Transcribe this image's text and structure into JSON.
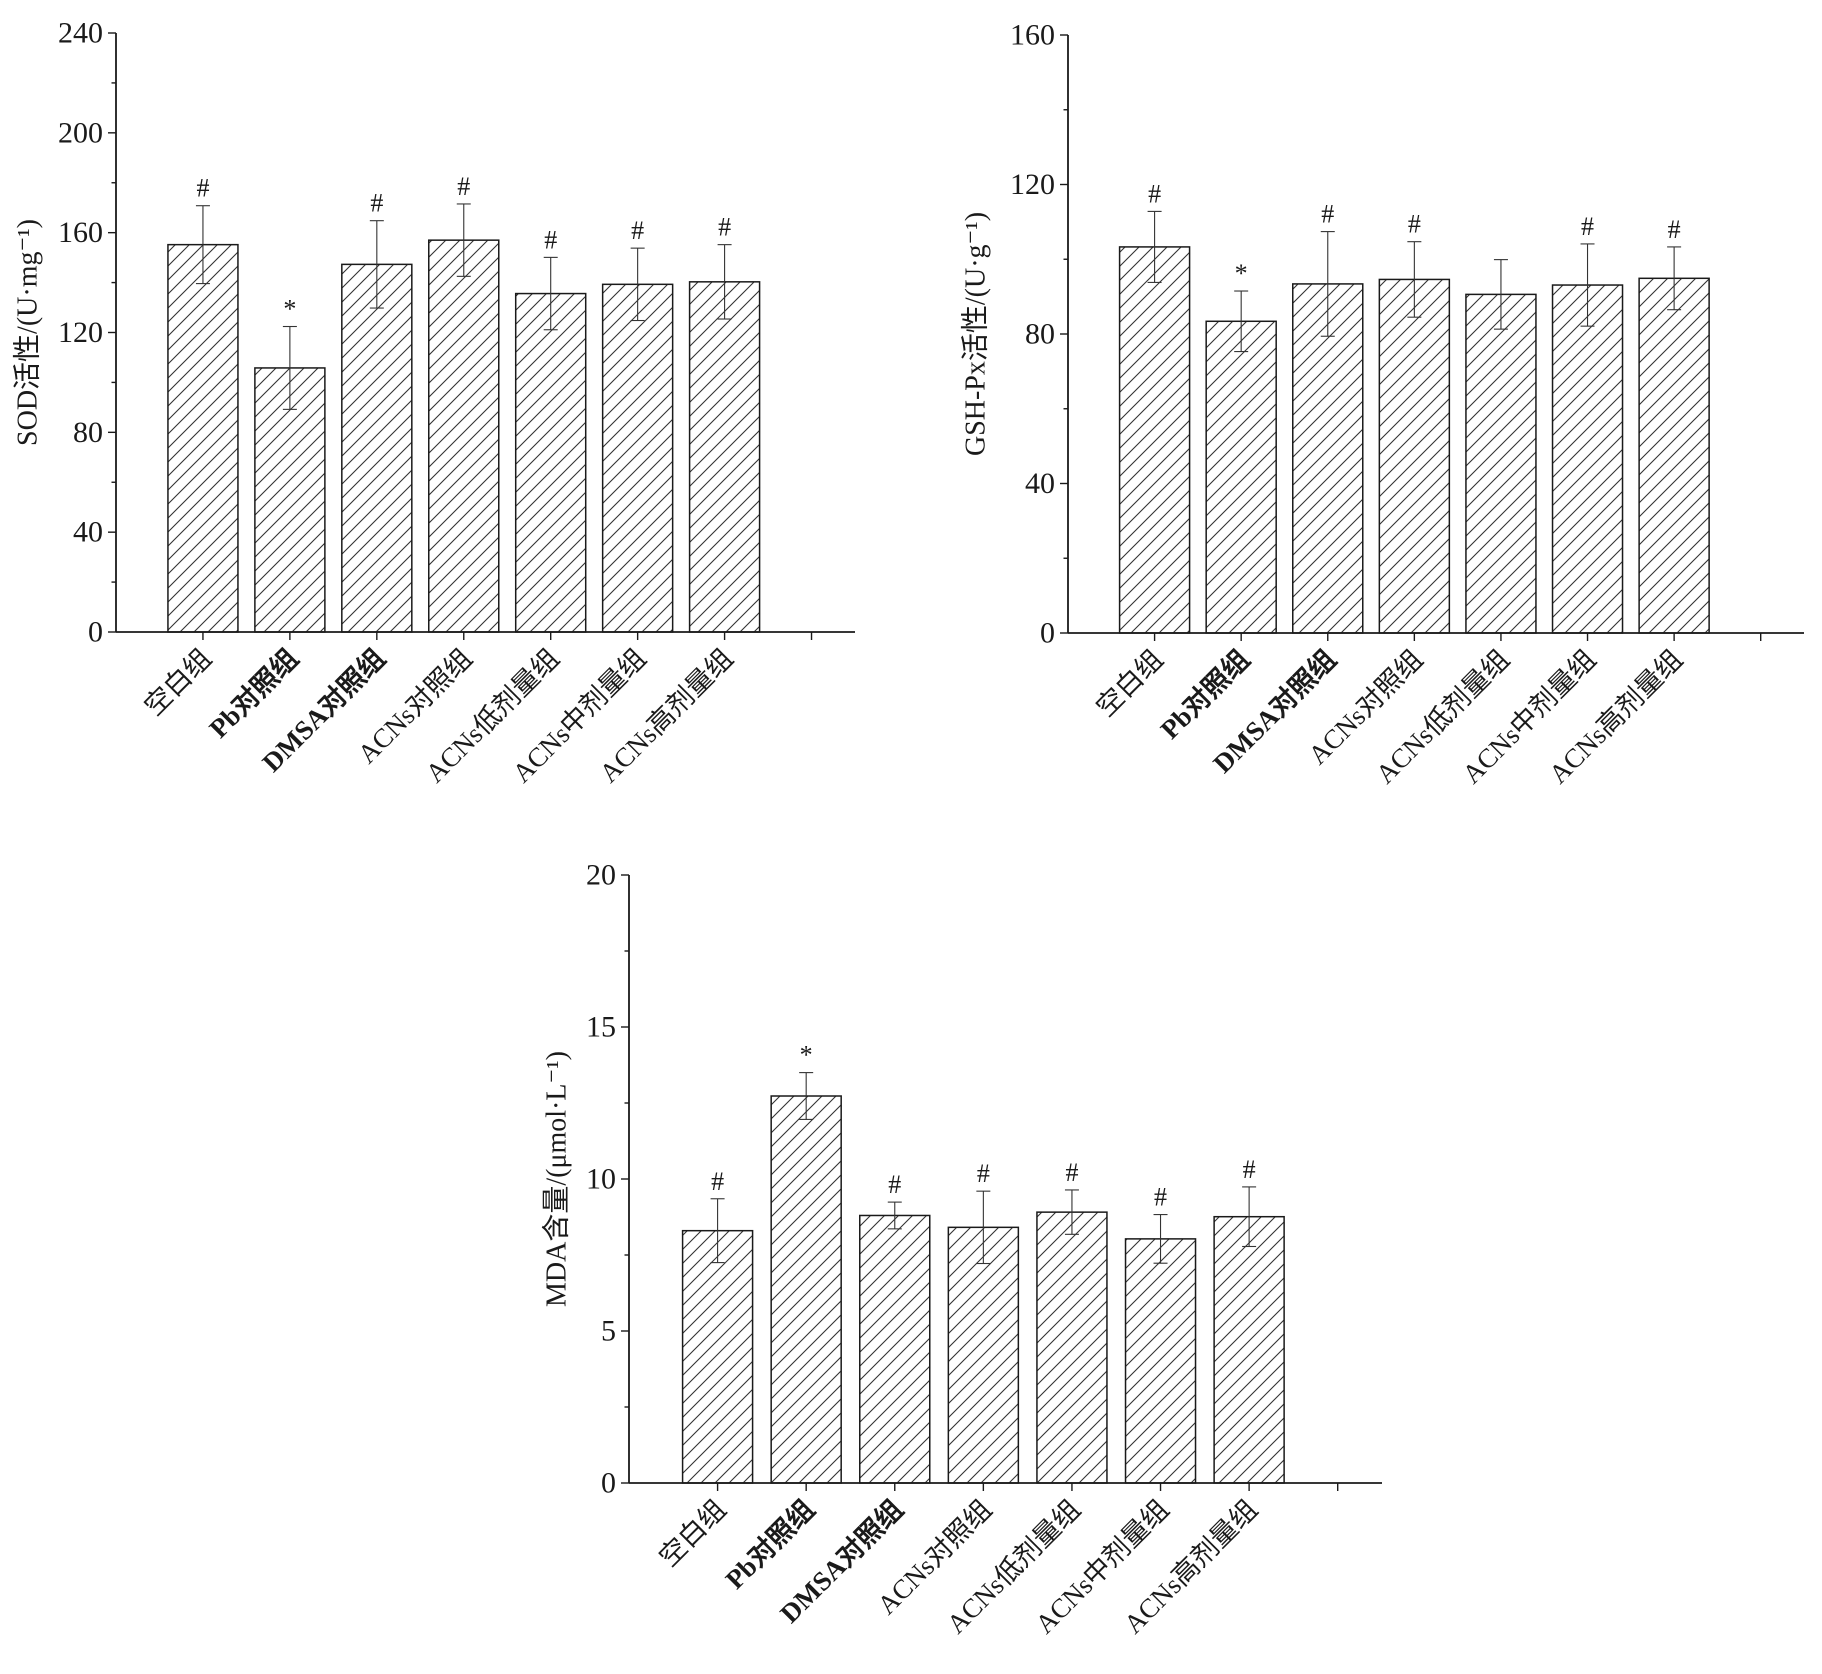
{
  "chart_data": [
    {
      "type": "bar",
      "ylabel": "SOD活性/(U·mg⁻¹)",
      "ylim": [
        0,
        240
      ],
      "yticks": [
        0,
        40,
        80,
        120,
        160,
        200,
        240
      ],
      "categories": [
        "空白组",
        "Pb对照组",
        "DMSA对照组",
        "ACNs对照组",
        "ACNs低剂量组",
        "ACNs中剂量组",
        "ACNs高剂量组"
      ],
      "values": [
        155.2,
        105.8,
        147.3,
        157.0,
        135.6,
        139.3,
        140.3
      ],
      "errors": [
        15.6,
        16.6,
        17.5,
        14.5,
        14.5,
        14.5,
        14.9
      ],
      "annotations": [
        "#",
        "*",
        "#",
        "#",
        "#",
        "#",
        "#"
      ],
      "grid": false
    },
    {
      "type": "bar",
      "ylabel": "GSH-Px活性/(U·g⁻¹)",
      "ylim": [
        0,
        160
      ],
      "yticks": [
        0,
        40,
        80,
        120,
        160
      ],
      "categories": [
        "空白组",
        "Pb对照组",
        "DMSA对照组",
        "ACNs对照组",
        "ACNs低剂量组",
        "ACNs中剂量组",
        "ACNs高剂量组"
      ],
      "values": [
        103.3,
        83.4,
        93.4,
        94.6,
        90.6,
        93.1,
        94.9
      ],
      "errors": [
        9.5,
        8.1,
        14.0,
        10.1,
        9.3,
        11.0,
        8.4
      ],
      "annotations": [
        "#",
        "*",
        "#",
        "#",
        "",
        "#",
        "#"
      ],
      "grid": false
    },
    {
      "type": "bar",
      "ylabel": "MDA含量/(μmol·L⁻¹)",
      "ylim": [
        0,
        20
      ],
      "yticks": [
        0,
        5,
        10,
        15,
        20
      ],
      "categories": [
        "空白组",
        "Pb对照组",
        "DMSA对照组",
        "ACNs对照组",
        "ACNs低剂量组",
        "ACNs中剂量组",
        "ACNs高剂量组"
      ],
      "values": [
        8.3,
        12.73,
        8.8,
        8.41,
        8.91,
        8.03,
        8.76
      ],
      "errors": [
        1.05,
        0.77,
        0.44,
        1.19,
        0.73,
        0.8,
        0.98
      ],
      "annotations": [
        "#",
        "*",
        "#",
        "#",
        "#",
        "#",
        "#"
      ],
      "grid": false
    }
  ],
  "style": {
    "ink": "#1a1a1a",
    "hatch": "#333333",
    "background": "#ffffff"
  }
}
